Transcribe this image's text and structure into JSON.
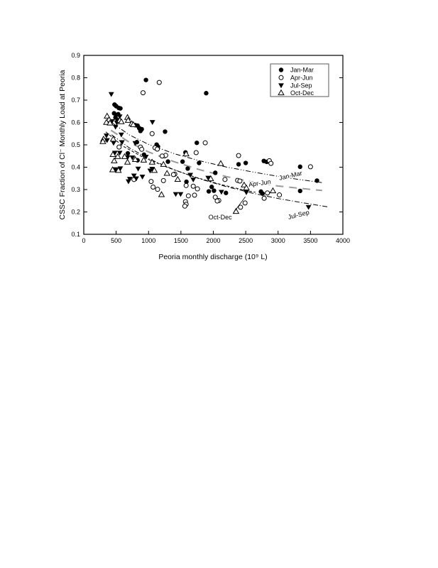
{
  "page": {
    "background": "#ffffff",
    "ink": "#000000"
  },
  "chart_data": {
    "type": "scatter",
    "title": "",
    "xlabel": "Peoria monthly discharge (10⁹ L)",
    "ylabel": "CSSC Fraction of Cl⁻ Monthly Load at Peoria",
    "xlim": [
      0,
      4000
    ],
    "ylim": [
      0.1,
      0.9
    ],
    "x_ticks": [
      0,
      500,
      1000,
      1500,
      2000,
      2500,
      3000,
      3500,
      4000
    ],
    "y_ticks": [
      0.1,
      0.2,
      0.3,
      0.4,
      0.5,
      0.6,
      0.7,
      0.8,
      0.9
    ],
    "right_ticks": [
      0.2,
      0.4,
      0.6,
      0.8
    ],
    "grid": false,
    "legend_position": "top-right",
    "series": [
      {
        "name": "Jan-Mar",
        "marker": "filled-circle",
        "points": [
          [
            960,
            0.79
          ],
          [
            1890,
            0.731
          ],
          [
            475,
            0.68
          ],
          [
            500,
            0.673
          ],
          [
            540,
            0.665
          ],
          [
            565,
            0.663
          ],
          [
            468,
            0.641
          ],
          [
            532,
            0.637
          ],
          [
            490,
            0.622
          ],
          [
            525,
            0.61
          ],
          [
            795,
            0.588
          ],
          [
            830,
            0.586
          ],
          [
            855,
            0.575
          ],
          [
            875,
            0.562
          ],
          [
            895,
            0.57
          ],
          [
            1255,
            0.559
          ],
          [
            820,
            0.512
          ],
          [
            1125,
            0.501
          ],
          [
            1145,
            0.492
          ],
          [
            1745,
            0.509
          ],
          [
            680,
            0.462
          ],
          [
            930,
            0.456
          ],
          [
            1570,
            0.466
          ],
          [
            830,
            0.431
          ],
          [
            1300,
            0.425
          ],
          [
            1525,
            0.425
          ],
          [
            1780,
            0.419
          ],
          [
            2390,
            0.413
          ],
          [
            2500,
            0.419
          ],
          [
            1605,
            0.394
          ],
          [
            2030,
            0.375
          ],
          [
            1585,
            0.335
          ],
          [
            1975,
            0.312
          ],
          [
            2010,
            0.295
          ],
          [
            1930,
            0.292
          ],
          [
            2195,
            0.285
          ],
          [
            2760,
            0.282
          ],
          [
            2735,
            0.291
          ],
          [
            2780,
            0.428
          ],
          [
            2825,
            0.424
          ],
          [
            3340,
            0.402
          ],
          [
            3600,
            0.34
          ],
          [
            3340,
            0.294
          ]
        ]
      },
      {
        "name": "Apr-Jun",
        "marker": "open-circle",
        "points": [
          [
            1165,
            0.779
          ],
          [
            915,
            0.733
          ],
          [
            1055,
            0.55
          ],
          [
            545,
            0.49
          ],
          [
            875,
            0.49
          ],
          [
            1100,
            0.487
          ],
          [
            1135,
            0.481
          ],
          [
            895,
            0.48
          ],
          [
            1265,
            0.453
          ],
          [
            1210,
            0.45
          ],
          [
            2390,
            0.452
          ],
          [
            1875,
            0.509
          ],
          [
            1735,
            0.465
          ],
          [
            1405,
            0.369
          ],
          [
            1385,
            0.367
          ],
          [
            2180,
            0.345
          ],
          [
            2375,
            0.341
          ],
          [
            2410,
            0.338
          ],
          [
            1690,
            0.315
          ],
          [
            1580,
            0.318
          ],
          [
            1755,
            0.303
          ],
          [
            1070,
            0.311
          ],
          [
            1140,
            0.301
          ],
          [
            1040,
            0.336
          ],
          [
            1230,
            0.34
          ],
          [
            1615,
            0.272
          ],
          [
            1710,
            0.275
          ],
          [
            2030,
            0.266
          ],
          [
            2085,
            0.251
          ],
          [
            2060,
            0.249
          ],
          [
            1570,
            0.246
          ],
          [
            1580,
            0.234
          ],
          [
            2490,
            0.24
          ],
          [
            2835,
            0.285
          ],
          [
            3020,
            0.276
          ],
          [
            2785,
            0.261
          ],
          [
            2865,
            0.429
          ],
          [
            2890,
            0.417
          ],
          [
            3500,
            0.402
          ],
          [
            775,
            0.345
          ],
          [
            2420,
            0.221
          ],
          [
            1560,
            0.226
          ]
        ]
      },
      {
        "name": "Jul-Sep",
        "marker": "filled-triangle-down",
        "points": [
          [
            425,
            0.727
          ],
          [
            490,
            0.634
          ],
          [
            555,
            0.627
          ],
          [
            1060,
            0.602
          ],
          [
            510,
            0.6
          ],
          [
            435,
            0.606
          ],
          [
            490,
            0.581
          ],
          [
            580,
            0.546
          ],
          [
            350,
            0.542
          ],
          [
            360,
            0.521
          ],
          [
            460,
            0.509
          ],
          [
            590,
            0.512
          ],
          [
            795,
            0.508
          ],
          [
            480,
            0.465
          ],
          [
            555,
            0.465
          ],
          [
            675,
            0.444
          ],
          [
            750,
            0.444
          ],
          [
            960,
            0.447
          ],
          [
            840,
            0.394
          ],
          [
            490,
            0.391
          ],
          [
            565,
            0.395
          ],
          [
            775,
            0.363
          ],
          [
            1055,
            0.393
          ],
          [
            1025,
            0.385
          ],
          [
            905,
            0.358
          ],
          [
            690,
            0.337
          ],
          [
            710,
            0.348
          ],
          [
            810,
            0.35
          ],
          [
            1645,
            0.366
          ],
          [
            1690,
            0.345
          ],
          [
            1920,
            0.353
          ],
          [
            2125,
            0.29
          ],
          [
            1420,
            0.28
          ],
          [
            1495,
            0.28
          ],
          [
            2510,
            0.288
          ],
          [
            3470,
            0.222
          ]
        ]
      },
      {
        "name": "Oct-Dec",
        "marker": "open-triangle-up",
        "points": [
          [
            360,
            0.628
          ],
          [
            675,
            0.622
          ],
          [
            390,
            0.612
          ],
          [
            555,
            0.609
          ],
          [
            685,
            0.609
          ],
          [
            350,
            0.6
          ],
          [
            405,
            0.597
          ],
          [
            580,
            0.603
          ],
          [
            740,
            0.594
          ],
          [
            765,
            0.59
          ],
          [
            305,
            0.525
          ],
          [
            295,
            0.514
          ],
          [
            455,
            0.525
          ],
          [
            525,
            0.447
          ],
          [
            450,
            0.456
          ],
          [
            630,
            0.447
          ],
          [
            470,
            0.428
          ],
          [
            675,
            0.422
          ],
          [
            795,
            0.434
          ],
          [
            925,
            0.431
          ],
          [
            1055,
            0.422
          ],
          [
            445,
            0.388
          ],
          [
            535,
            0.385
          ],
          [
            1090,
            0.385
          ],
          [
            1230,
            0.412
          ],
          [
            1285,
            0.372
          ],
          [
            1450,
            0.345
          ],
          [
            1960,
            0.348
          ],
          [
            2115,
            0.416
          ],
          [
            2475,
            0.32
          ],
          [
            2920,
            0.294
          ],
          [
            1580,
            0.459
          ],
          [
            2350,
            0.202
          ],
          [
            1200,
            0.277
          ],
          [
            2510,
            0.307
          ]
        ]
      }
    ],
    "trend_lines": [
      {
        "name": "Jan-Mar",
        "style": "dash-dot-dot",
        "color": "#000000",
        "width": 1,
        "points": [
          [
            430,
            0.6
          ],
          [
            700,
            0.545
          ],
          [
            1000,
            0.502
          ],
          [
            1400,
            0.46
          ],
          [
            1800,
            0.428
          ],
          [
            2200,
            0.401
          ],
          [
            2600,
            0.379
          ],
          [
            3000,
            0.359
          ],
          [
            3300,
            0.346
          ],
          [
            3680,
            0.331
          ]
        ],
        "label": {
          "text": "Jan-Mar",
          "x": 3200,
          "y": 0.363,
          "rotate": -13
        }
      },
      {
        "name": "Apr-Jun",
        "style": "long-dash",
        "color": "#9a9a9a",
        "width": 2,
        "points": [
          [
            420,
            0.565
          ],
          [
            700,
            0.512
          ],
          [
            1000,
            0.468
          ],
          [
            1400,
            0.424
          ],
          [
            1800,
            0.388
          ],
          [
            2200,
            0.358
          ],
          [
            2600,
            0.334
          ],
          [
            3000,
            0.316
          ],
          [
            3350,
            0.305
          ],
          [
            3680,
            0.296
          ]
        ],
        "label": {
          "text": "Apr-Jun",
          "x": 2720,
          "y": 0.329,
          "rotate": -8
        }
      },
      {
        "name": "Jul-Sep",
        "style": "dash-dot",
        "color": "#000000",
        "width": 1,
        "points": [
          [
            430,
            0.545
          ],
          [
            700,
            0.487
          ],
          [
            1000,
            0.438
          ],
          [
            1400,
            0.388
          ],
          [
            1800,
            0.347
          ],
          [
            2200,
            0.313
          ],
          [
            2600,
            0.284
          ],
          [
            3000,
            0.26
          ],
          [
            3400,
            0.24
          ],
          [
            3760,
            0.223
          ]
        ],
        "label": {
          "text": "Jul-Sep",
          "x": 3325,
          "y": 0.188,
          "rotate": -14
        }
      },
      {
        "name": "Oct-Dec",
        "style": "short-dash",
        "color": "#000000",
        "width": 1,
        "points": [
          [
            340,
            0.558
          ],
          [
            600,
            0.495
          ],
          [
            900,
            0.447
          ],
          [
            1300,
            0.398
          ],
          [
            1700,
            0.357
          ],
          [
            2100,
            0.324
          ],
          [
            2500,
            0.296
          ],
          [
            2650,
            0.288
          ]
        ],
        "label": {
          "text": "Oct-Dec",
          "x": 2105,
          "y": 0.176,
          "rotate": 0,
          "leader": [
            [
              2310,
              0.196
            ],
            [
              2495,
              0.268
            ]
          ]
        }
      }
    ]
  }
}
